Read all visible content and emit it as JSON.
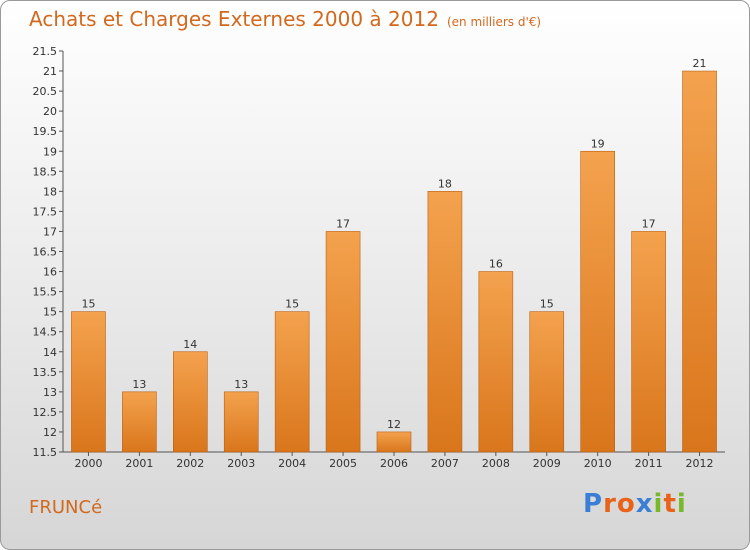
{
  "header": {
    "title": "Achats et Charges Externes 2000 à 2012",
    "unit": "(en milliers d'€)"
  },
  "footer": {
    "commune": "FRUNCé",
    "logo": [
      "P",
      "r",
      "o",
      "x",
      "i",
      "t",
      "i"
    ]
  },
  "colors": {
    "bar_top": "#f4a24e",
    "bar_bottom": "#d9761c",
    "title": "#d2691e",
    "logo": [
      "#3a7fd5",
      "#e8621a",
      "#e8621a",
      "#3a7fd5",
      "#78b82a",
      "#e8621a",
      "#78b82a"
    ]
  },
  "chart_data": {
    "type": "bar",
    "categories": [
      "2000",
      "2001",
      "2002",
      "2003",
      "2004",
      "2005",
      "2006",
      "2007",
      "2008",
      "2009",
      "2010",
      "2011",
      "2012"
    ],
    "values": [
      15,
      13,
      14,
      13,
      15,
      17,
      12,
      18,
      16,
      15,
      19,
      17,
      21
    ],
    "data_labels": [
      "15",
      "13",
      "14",
      "13",
      "15",
      "17",
      "12",
      "18",
      "16",
      "15",
      "19",
      "17",
      "21"
    ],
    "yticks": [
      "11.5",
      "12",
      "12.5",
      "13",
      "13.5",
      "14",
      "14.5",
      "15",
      "15.5",
      "16",
      "16.5",
      "17",
      "17.5",
      "18",
      "18.5",
      "19",
      "19.5",
      "20",
      "20.5",
      "21",
      "21.5"
    ],
    "ylim": [
      11.5,
      21.5
    ],
    "grid": false
  }
}
